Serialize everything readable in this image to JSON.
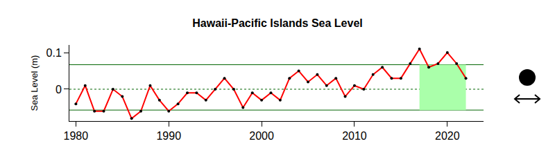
{
  "chart_data": {
    "type": "line",
    "title": "Hawaii-Pacific Islands Sea Level",
    "y_label": "Sea Level (m)",
    "x": [
      1980,
      1981,
      1982,
      1983,
      1984,
      1985,
      1986,
      1987,
      1988,
      1989,
      1990,
      1991,
      1992,
      1993,
      1994,
      1995,
      1996,
      1997,
      1998,
      1999,
      2000,
      2001,
      2002,
      2003,
      2004,
      2005,
      2006,
      2007,
      2008,
      2009,
      2010,
      2011,
      2012,
      2013,
      2014,
      2015,
      2016,
      2017,
      2018,
      2019,
      2020,
      2021,
      2022
    ],
    "series": [
      {
        "color": "#ff0000",
        "marker": "circle",
        "values": [
          -0.04,
          0.01,
          -0.06,
          -0.06,
          0.0,
          -0.02,
          -0.08,
          -0.06,
          0.01,
          -0.03,
          -0.06,
          -0.04,
          -0.01,
          -0.01,
          -0.03,
          0.0,
          0.03,
          0.0,
          -0.05,
          -0.01,
          -0.03,
          -0.01,
          -0.03,
          0.03,
          0.05,
          0.02,
          0.04,
          0.01,
          0.03,
          -0.02,
          0.01,
          0.0,
          0.04,
          0.06,
          0.03,
          0.03,
          0.07,
          0.11,
          0.06,
          0.07,
          0.1,
          0.07,
          0.03
        ]
      }
    ],
    "reference_lines": [
      {
        "value": 0.067,
        "color": "#006400",
        "line_style": "solid"
      },
      {
        "value": 0,
        "color": "#006400",
        "line_style": "dotted"
      },
      {
        "value": -0.057,
        "color": "#006400",
        "line_style": "solid"
      }
    ],
    "shaded_region": {
      "x": [
        2017,
        2022
      ],
      "y": [
        -0.057,
        0.067
      ],
      "color": "#aaffaa"
    },
    "xlim": [
      1979.3,
      2023.9
    ],
    "ylim": [
      -0.087,
      0.121
    ],
    "xticks": [
      1980,
      1990,
      2000,
      2010,
      2020
    ],
    "yticks": [
      0,
      0.1
    ],
    "grid": false
  }
}
